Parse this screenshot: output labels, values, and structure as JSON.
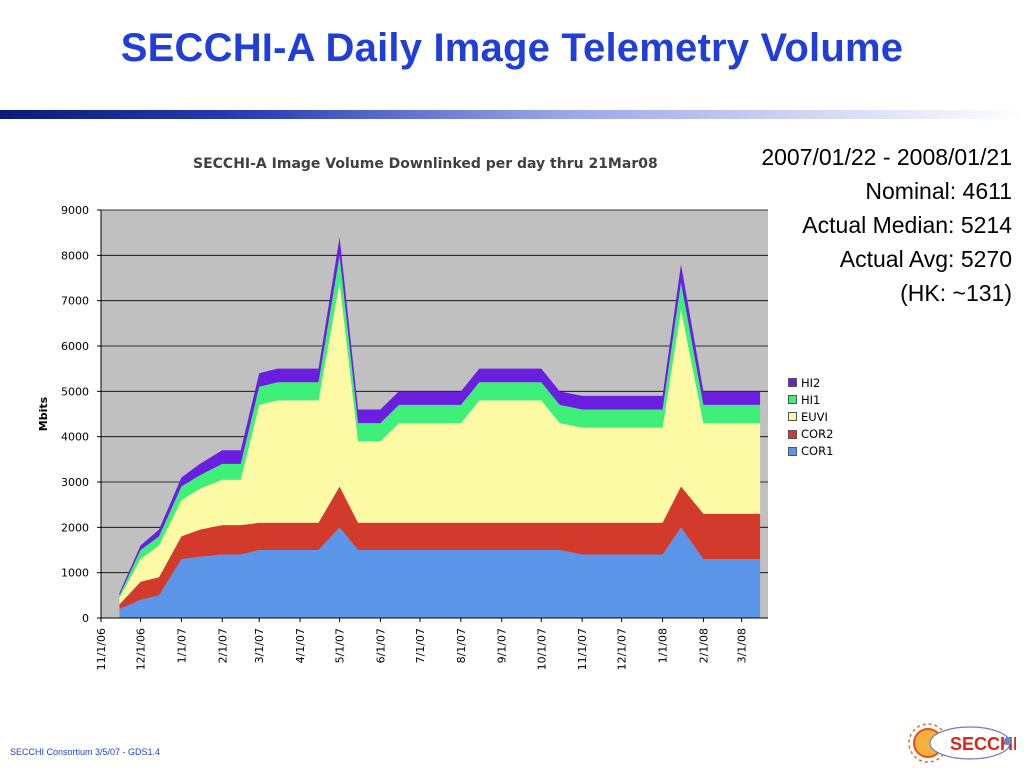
{
  "slide": {
    "title": "SECCHI-A Daily Image Telemetry Volume",
    "footer": "SECCHI Consortium 3/5/07 - GDS1.4",
    "logo_text": "SECCHI"
  },
  "stats": {
    "range": "2007/01/22 - 2008/01/21",
    "nominal": "Nominal: 4611",
    "median": "Actual Median: 5214",
    "avg": "Actual Avg: 5270",
    "hk": "(HK: ~131)"
  },
  "colors": {
    "HI2": "#6a1ee0",
    "HI1": "#3ef07a",
    "EUVI": "#fdfaa6",
    "COR2": "#d23a2c",
    "COR1": "#5b96e8",
    "plot_bg": "#c0c0c0",
    "title_blue": "#1f3fd8"
  },
  "chart_data": {
    "type": "area",
    "stacked": true,
    "title": "SECCHI-A Image Volume Downlinked per day thru 21Mar08",
    "xlabel": "",
    "ylabel": "Mbits",
    "ylim": [
      0,
      9000
    ],
    "yticks": [
      0,
      1000,
      2000,
      3000,
      4000,
      5000,
      6000,
      7000,
      8000,
      9000
    ],
    "xlim": [
      "2006-11-01",
      "2008-03-21"
    ],
    "xticks": [
      "11/1/06",
      "12/1/06",
      "1/1/07",
      "2/1/07",
      "3/1/07",
      "4/1/07",
      "5/1/07",
      "6/1/07",
      "7/1/07",
      "8/1/07",
      "9/1/07",
      "10/1/07",
      "11/1/07",
      "12/1/07",
      "1/1/08",
      "2/1/08",
      "3/1/08"
    ],
    "grid": true,
    "legend_position": "right",
    "series_order_top_to_bottom": [
      "HI2",
      "HI1",
      "EUVI",
      "COR2",
      "COR1"
    ],
    "x": [
      "2006-11-15",
      "2006-12-01",
      "2006-12-15",
      "2007-01-01",
      "2007-01-15",
      "2007-02-01",
      "2007-02-15",
      "2007-03-01",
      "2007-03-15",
      "2007-04-01",
      "2007-04-15",
      "2007-05-01",
      "2007-05-15",
      "2007-06-01",
      "2007-06-15",
      "2007-07-01",
      "2007-07-15",
      "2007-08-01",
      "2007-08-15",
      "2007-09-01",
      "2007-09-15",
      "2007-10-01",
      "2007-10-15",
      "2007-11-01",
      "2007-11-15",
      "2007-12-01",
      "2007-12-15",
      "2008-01-01",
      "2008-01-15",
      "2008-02-01",
      "2008-02-15",
      "2008-03-01",
      "2008-03-15"
    ],
    "series": [
      {
        "name": "COR1",
        "values": [
          200,
          400,
          500,
          1300,
          1350,
          1400,
          1400,
          1500,
          1500,
          1500,
          1500,
          2000,
          1500,
          1500,
          1500,
          1500,
          1500,
          1500,
          1500,
          1500,
          1500,
          1500,
          1500,
          1400,
          1400,
          1400,
          1400,
          1400,
          2000,
          1300,
          1300,
          1300,
          1300
        ]
      },
      {
        "name": "COR2",
        "values": [
          100,
          400,
          400,
          500,
          600,
          650,
          650,
          600,
          600,
          600,
          600,
          900,
          600,
          600,
          600,
          600,
          600,
          600,
          600,
          600,
          600,
          600,
          600,
          700,
          700,
          700,
          700,
          700,
          900,
          1000,
          1000,
          1000,
          1000
        ]
      },
      {
        "name": "EUVI",
        "values": [
          150,
          500,
          700,
          800,
          900,
          1000,
          1000,
          2600,
          2700,
          2700,
          2700,
          4500,
          1800,
          1800,
          2200,
          2200,
          2200,
          2200,
          2700,
          2700,
          2700,
          2700,
          2200,
          2100,
          2100,
          2100,
          2100,
          2100,
          3900,
          2000,
          2000,
          2000,
          2000
        ]
      },
      {
        "name": "HI1",
        "values": [
          50,
          200,
          200,
          300,
          300,
          350,
          350,
          400,
          400,
          400,
          400,
          600,
          400,
          400,
          400,
          400,
          400,
          400,
          400,
          400,
          400,
          400,
          400,
          400,
          400,
          400,
          400,
          400,
          600,
          400,
          400,
          400,
          400
        ]
      },
      {
        "name": "HI2",
        "values": [
          50,
          100,
          150,
          200,
          250,
          300,
          300,
          300,
          300,
          300,
          300,
          400,
          300,
          300,
          300,
          300,
          300,
          300,
          300,
          300,
          300,
          300,
          300,
          300,
          300,
          300,
          300,
          300,
          400,
          300,
          300,
          300,
          300
        ]
      }
    ]
  }
}
